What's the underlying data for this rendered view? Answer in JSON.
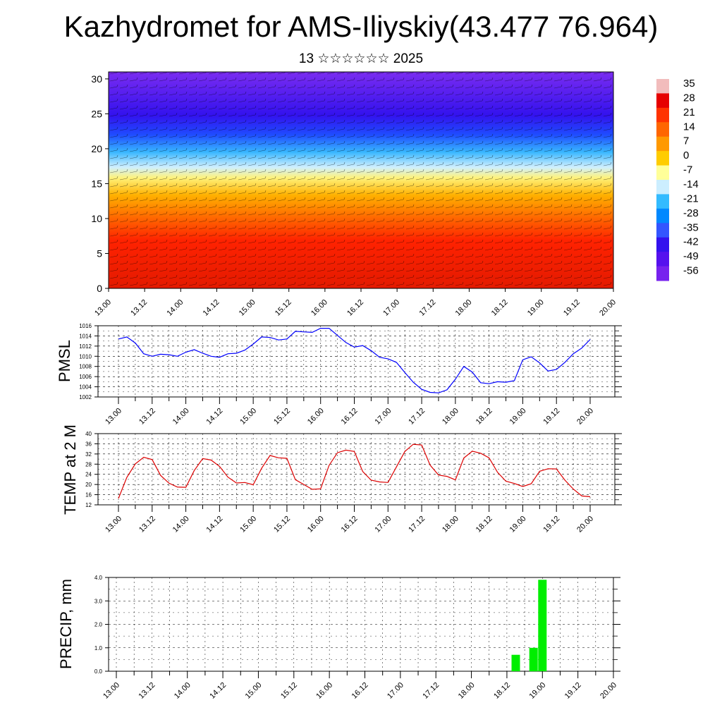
{
  "title": "Kazhydromet for AMS-Iliyskiy(43.477 76.964)",
  "subtitle": "13 ☆☆☆☆☆☆ 2025",
  "colorbar": {
    "labels": [
      "35",
      "28",
      "21",
      "14",
      "7",
      "0",
      "-7",
      "-14",
      "-21",
      "-28",
      "-35",
      "-42",
      "-49",
      "-56"
    ],
    "colors": [
      "#f2bcbc",
      "#e60000",
      "#ff3300",
      "#ff6600",
      "#ff9900",
      "#ffcc00",
      "#ffff99",
      "#cceeff",
      "#33bbff",
      "#0088ff",
      "#3355ff",
      "#3311ee",
      "#5511ee",
      "#7722ee"
    ]
  },
  "chart_data": [
    {
      "type": "heatmap",
      "name": "wind-temperature-cross-section",
      "x_ticks": [
        "13.00",
        "13.12",
        "14.00",
        "14.12",
        "15.00",
        "15.12",
        "16.00",
        "16.12",
        "17.00",
        "17.12",
        "18.00",
        "18.12",
        "19.00",
        "19.12",
        "20.00"
      ],
      "y_ticks": [
        "0",
        "5",
        "10",
        "15",
        "20",
        "25",
        "30"
      ],
      "ylim": [
        0,
        31
      ],
      "bands": [
        {
          "y0": 0,
          "y1": 9,
          "value": 21
        },
        {
          "y0": 9,
          "y1": 13,
          "value": 7
        },
        {
          "y0": 13,
          "y1": 17,
          "value": -7
        },
        {
          "y0": 17,
          "y1": 21,
          "value": -28
        },
        {
          "y0": 21,
          "y1": 26,
          "value": -49
        },
        {
          "y0": 26,
          "y1": 31,
          "value": -56
        }
      ]
    },
    {
      "type": "line",
      "ylabel": "PMSL",
      "x_ticks": [
        "13.00",
        "13.12",
        "14.00",
        "14.12",
        "15.00",
        "15.12",
        "16.00",
        "16.12",
        "17.00",
        "17.12",
        "18.00",
        "18.12",
        "19.00",
        "19.12",
        "20.00"
      ],
      "y_ticks": [
        "1002",
        "1004",
        "1006",
        "1008",
        "1010",
        "1012",
        "1014",
        "1016"
      ],
      "ylim": [
        1002,
        1016
      ],
      "color": "#0000ff",
      "values": [
        1013.4,
        1013.8,
        1012.6,
        1010.5,
        1010.0,
        1010.4,
        1010.3,
        1010.0,
        1010.8,
        1011.3,
        1010.6,
        1010.0,
        1009.8,
        1010.5,
        1010.6,
        1011.2,
        1012.4,
        1013.8,
        1013.7,
        1013.2,
        1013.4,
        1014.9,
        1014.8,
        1014.7,
        1015.5,
        1015.5,
        1014.1,
        1012.7,
        1011.8,
        1012.1,
        1011.1,
        1009.8,
        1009.5,
        1008.8,
        1006.8,
        1004.9,
        1003.5,
        1002.9,
        1002.8,
        1003.4,
        1005.5,
        1008.0,
        1006.9,
        1004.8,
        1004.6,
        1005.0,
        1004.9,
        1005.2,
        1009.3,
        1009.9,
        1008.7,
        1007.1,
        1007.4,
        1008.8,
        1010.5,
        1011.6,
        1013.3
      ]
    },
    {
      "type": "line",
      "ylabel": "TEMP at 2 M",
      "x_ticks": [
        "13.00",
        "13.12",
        "14.00",
        "14.12",
        "15.00",
        "15.12",
        "16.00",
        "16.12",
        "17.00",
        "17.12",
        "18.00",
        "18.12",
        "19.00",
        "19.12",
        "20.00"
      ],
      "y_ticks": [
        "12",
        "16",
        "20",
        "24",
        "28",
        "32",
        "36",
        "40"
      ],
      "ylim": [
        12,
        40
      ],
      "color": "#dd0000",
      "values": [
        14.5,
        22.8,
        28.1,
        30.7,
        29.8,
        23.6,
        20.5,
        19.0,
        18.9,
        25.5,
        30.2,
        29.6,
        27.1,
        22.9,
        20.6,
        20.8,
        19.9,
        26.4,
        31.4,
        30.5,
        30.3,
        21.9,
        20.0,
        18.1,
        18.3,
        27.5,
        32.5,
        33.5,
        33.0,
        25.1,
        21.7,
        21.0,
        20.8,
        26.9,
        33.0,
        35.8,
        35.5,
        27.6,
        23.7,
        23.2,
        21.8,
        30.4,
        33.1,
        32.3,
        30.5,
        24.8,
        21.3,
        20.4,
        19.2,
        20.3,
        25.2,
        26.2,
        26.1,
        21.7,
        18.2,
        15.5,
        15.2
      ]
    },
    {
      "type": "bar",
      "ylabel": "PRECIP, mm",
      "x_ticks": [
        "13.00",
        "13.12",
        "14.00",
        "14.12",
        "15.00",
        "15.12",
        "16.00",
        "16.12",
        "17.00",
        "17.12",
        "18.00",
        "18.12",
        "19.00",
        "19.12",
        "20.00"
      ],
      "y_ticks": [
        "0.0",
        "1.0",
        "2.0",
        "3.0",
        "4.0"
      ],
      "ylim": [
        0,
        4.0
      ],
      "color": "#00ee00",
      "bars": [
        {
          "x": "18.15",
          "value": 0.7
        },
        {
          "x": "18.21",
          "value": 1.0
        },
        {
          "x": "19.00",
          "value": 3.9
        }
      ]
    }
  ]
}
